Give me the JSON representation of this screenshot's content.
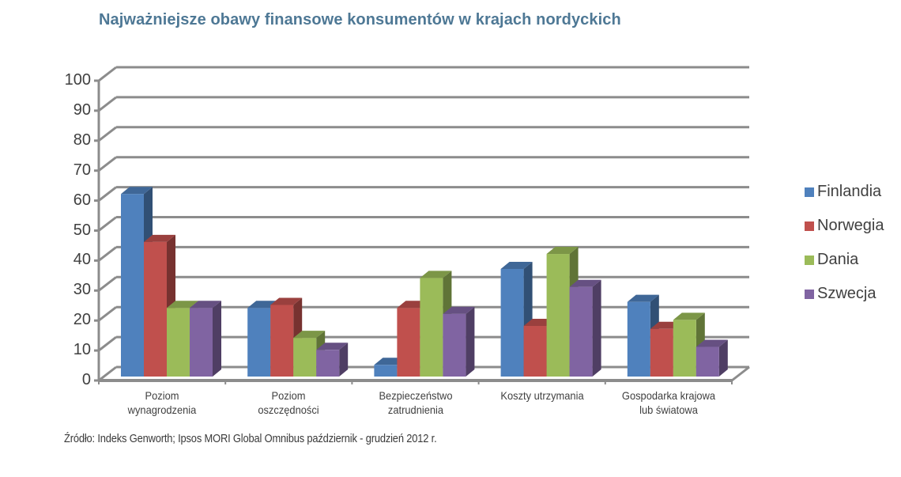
{
  "title": "Najważniejsze obawy finansowe konsumentów w krajach nordyckich",
  "source": "Źródło: Indeks Genworth; Ipsos MORI Global Omnibus październik - grudzień 2012 r.",
  "colors": {
    "title": "#4e7895",
    "Finlandia": "#4f81bd",
    "Norwegia": "#c0504d",
    "Dania": "#9bbb59",
    "Szwecja": "#8064a2",
    "grid": "#8c8c8c"
  },
  "legend": [
    {
      "label": "Finlandia",
      "color": "#4f81bd"
    },
    {
      "label": "Norwegia",
      "color": "#c0504d"
    },
    {
      "label": "Dania",
      "color": "#9bbb59"
    },
    {
      "label": "Szwecja",
      "color": "#8064a2"
    }
  ],
  "chart_data": {
    "type": "bar",
    "style": "3d-clustered-column",
    "title": "Najważniejsze obawy finansowe konsumentów w krajach nordyckich",
    "xlabel": "",
    "ylabel": "",
    "ylim": [
      0,
      100
    ],
    "yticks": [
      0,
      10,
      20,
      30,
      40,
      50,
      60,
      70,
      80,
      90,
      100
    ],
    "grid": true,
    "legend_position": "right",
    "categories": [
      [
        "Poziom",
        "wynagrodzenia"
      ],
      [
        "Poziom",
        "oszczędności"
      ],
      [
        "Bezpieczeństwo",
        "zatrudnienia"
      ],
      [
        "Koszty utrzymania"
      ],
      [
        "Gospodarka krajowa",
        "lub światowa"
      ]
    ],
    "series": [
      {
        "name": "Finlandia",
        "values": [
          63,
          25,
          6,
          38,
          27
        ]
      },
      {
        "name": "Norwegia",
        "values": [
          47,
          26,
          25,
          19,
          18
        ]
      },
      {
        "name": "Dania",
        "values": [
          25,
          15,
          35,
          43,
          21
        ]
      },
      {
        "name": "Szwecja",
        "values": [
          25,
          11,
          23,
          32,
          12
        ]
      }
    ],
    "source": "Źródło: Indeks Genworth; Ipsos MORI Global Omnibus październik - grudzień 2012 r."
  }
}
